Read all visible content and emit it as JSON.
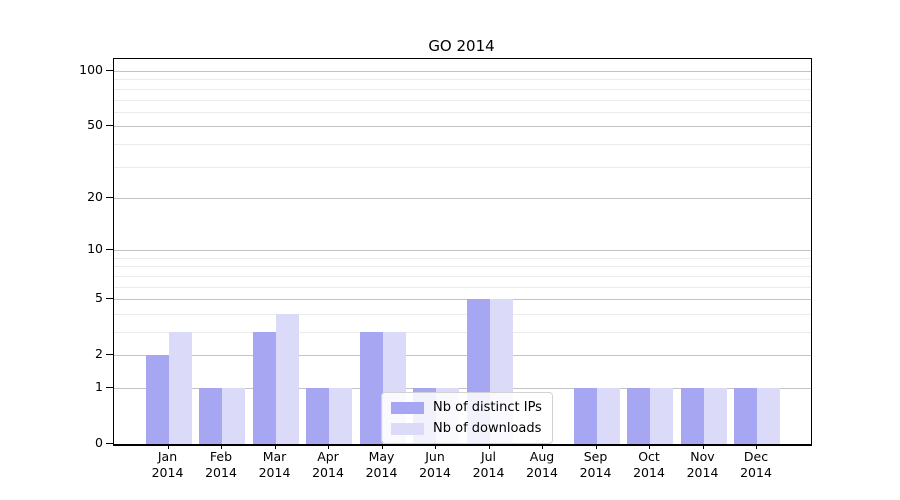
{
  "chart_data": {
    "type": "bar",
    "title": "GO 2014",
    "categories": [
      "Jan 2014",
      "Feb 2014",
      "Mar 2014",
      "Apr 2014",
      "May 2014",
      "Jun 2014",
      "Jul 2014",
      "Aug 2014",
      "Sep 2014",
      "Oct 2014",
      "Nov 2014",
      "Dec 2014"
    ],
    "series": [
      {
        "name": "Nb of distinct IPs",
        "color": "#a6a6f2",
        "values": [
          2,
          1,
          3,
          1,
          3,
          1,
          5,
          0,
          1,
          1,
          1,
          1
        ]
      },
      {
        "name": "Nb of downloads",
        "color": "#dbdbf9",
        "values": [
          3,
          1,
          4,
          1,
          3,
          1,
          5,
          0,
          1,
          1,
          1,
          1
        ]
      }
    ],
    "y_axis": {
      "scale": "log1p",
      "major_ticks": [
        0,
        1,
        2,
        5,
        10,
        20,
        50,
        100
      ],
      "minor_ticks": [
        3,
        4,
        6,
        7,
        8,
        9,
        30,
        40,
        60,
        70,
        80,
        90
      ],
      "ylim": [
        0,
        116.2
      ]
    },
    "legend": {
      "position": "lower center"
    },
    "grid": "horizontal"
  },
  "colors": {
    "grid_major": "#c3c3c3",
    "grid_minor": "#ebebeb",
    "axis_line": "#000000",
    "legend_border": "#d2d2d2"
  }
}
